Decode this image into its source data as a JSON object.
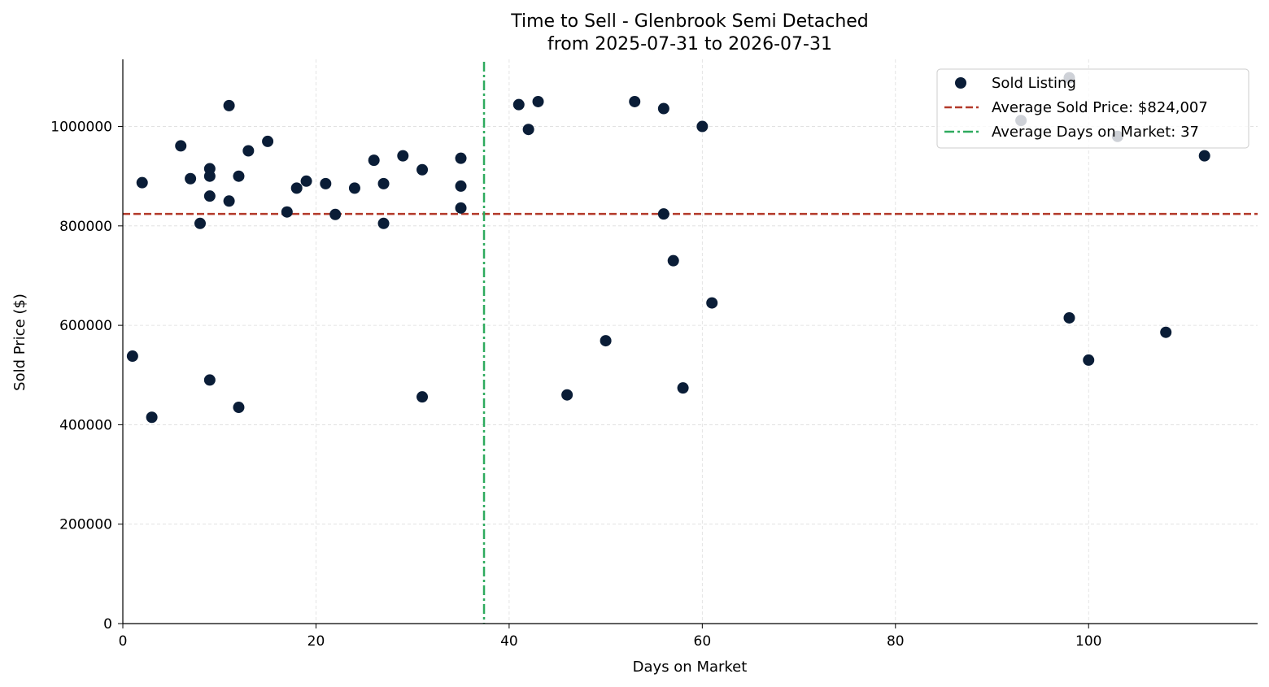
{
  "chart_data": {
    "type": "scatter",
    "title": "Time to Sell - Glenbrook Semi Detached",
    "subtitle": "from 2025-07-31 to 2026-07-31",
    "xlabel": "Days on Market",
    "ylabel": "Sold Price ($)",
    "xlim": [
      0,
      117.5
    ],
    "ylim": [
      0,
      1135000
    ],
    "x_ticks": [
      0,
      20,
      40,
      60,
      80,
      100
    ],
    "y_ticks": [
      0,
      200000,
      400000,
      600000,
      800000,
      1000000
    ],
    "x_tick_labels": [
      "0",
      "20",
      "40",
      "60",
      "80",
      "100"
    ],
    "y_tick_labels": [
      "0",
      "200000",
      "400000",
      "600000",
      "800000",
      "1000000"
    ],
    "grid": true,
    "legend_position": "top-right",
    "series": [
      {
        "name": "Sold Listing",
        "color": "#0a1d37",
        "points": [
          [
            1,
            538000
          ],
          [
            2,
            887000
          ],
          [
            3,
            415000
          ],
          [
            6,
            961000
          ],
          [
            7,
            895000
          ],
          [
            8,
            805000
          ],
          [
            9,
            915000
          ],
          [
            9,
            900000
          ],
          [
            9,
            860000
          ],
          [
            9,
            490000
          ],
          [
            11,
            1042000
          ],
          [
            11,
            850000
          ],
          [
            12,
            900000
          ],
          [
            12,
            435000
          ],
          [
            13,
            951000
          ],
          [
            15,
            970000
          ],
          [
            17,
            828000
          ],
          [
            18,
            876000
          ],
          [
            19,
            890000
          ],
          [
            21,
            885000
          ],
          [
            22,
            823000
          ],
          [
            24,
            876000
          ],
          [
            26,
            932000
          ],
          [
            27,
            885000
          ],
          [
            27,
            805000
          ],
          [
            29,
            941000
          ],
          [
            31,
            913000
          ],
          [
            31,
            456000
          ],
          [
            35,
            936000
          ],
          [
            35,
            880000
          ],
          [
            35,
            836000
          ],
          [
            41,
            1044000
          ],
          [
            42,
            994000
          ],
          [
            43,
            1050000
          ],
          [
            46,
            460000
          ],
          [
            50,
            569000
          ],
          [
            53,
            1050000
          ],
          [
            56,
            1036000
          ],
          [
            56,
            824000
          ],
          [
            57,
            730000
          ],
          [
            58,
            474000
          ],
          [
            60,
            1000000
          ],
          [
            61,
            645000
          ],
          [
            93,
            1012000
          ],
          [
            98,
            1098000
          ],
          [
            98,
            615000
          ],
          [
            100,
            530000
          ],
          [
            103,
            980000
          ],
          [
            108,
            586000
          ],
          [
            112,
            941000
          ]
        ]
      }
    ],
    "average_price": {
      "name": "Average Sold Price: $824,007",
      "value": 824007,
      "color": "#b33a2a"
    },
    "average_days": {
      "name": "Average Days on Market: 37",
      "value": 37.4,
      "color": "#2eaa5e"
    }
  }
}
